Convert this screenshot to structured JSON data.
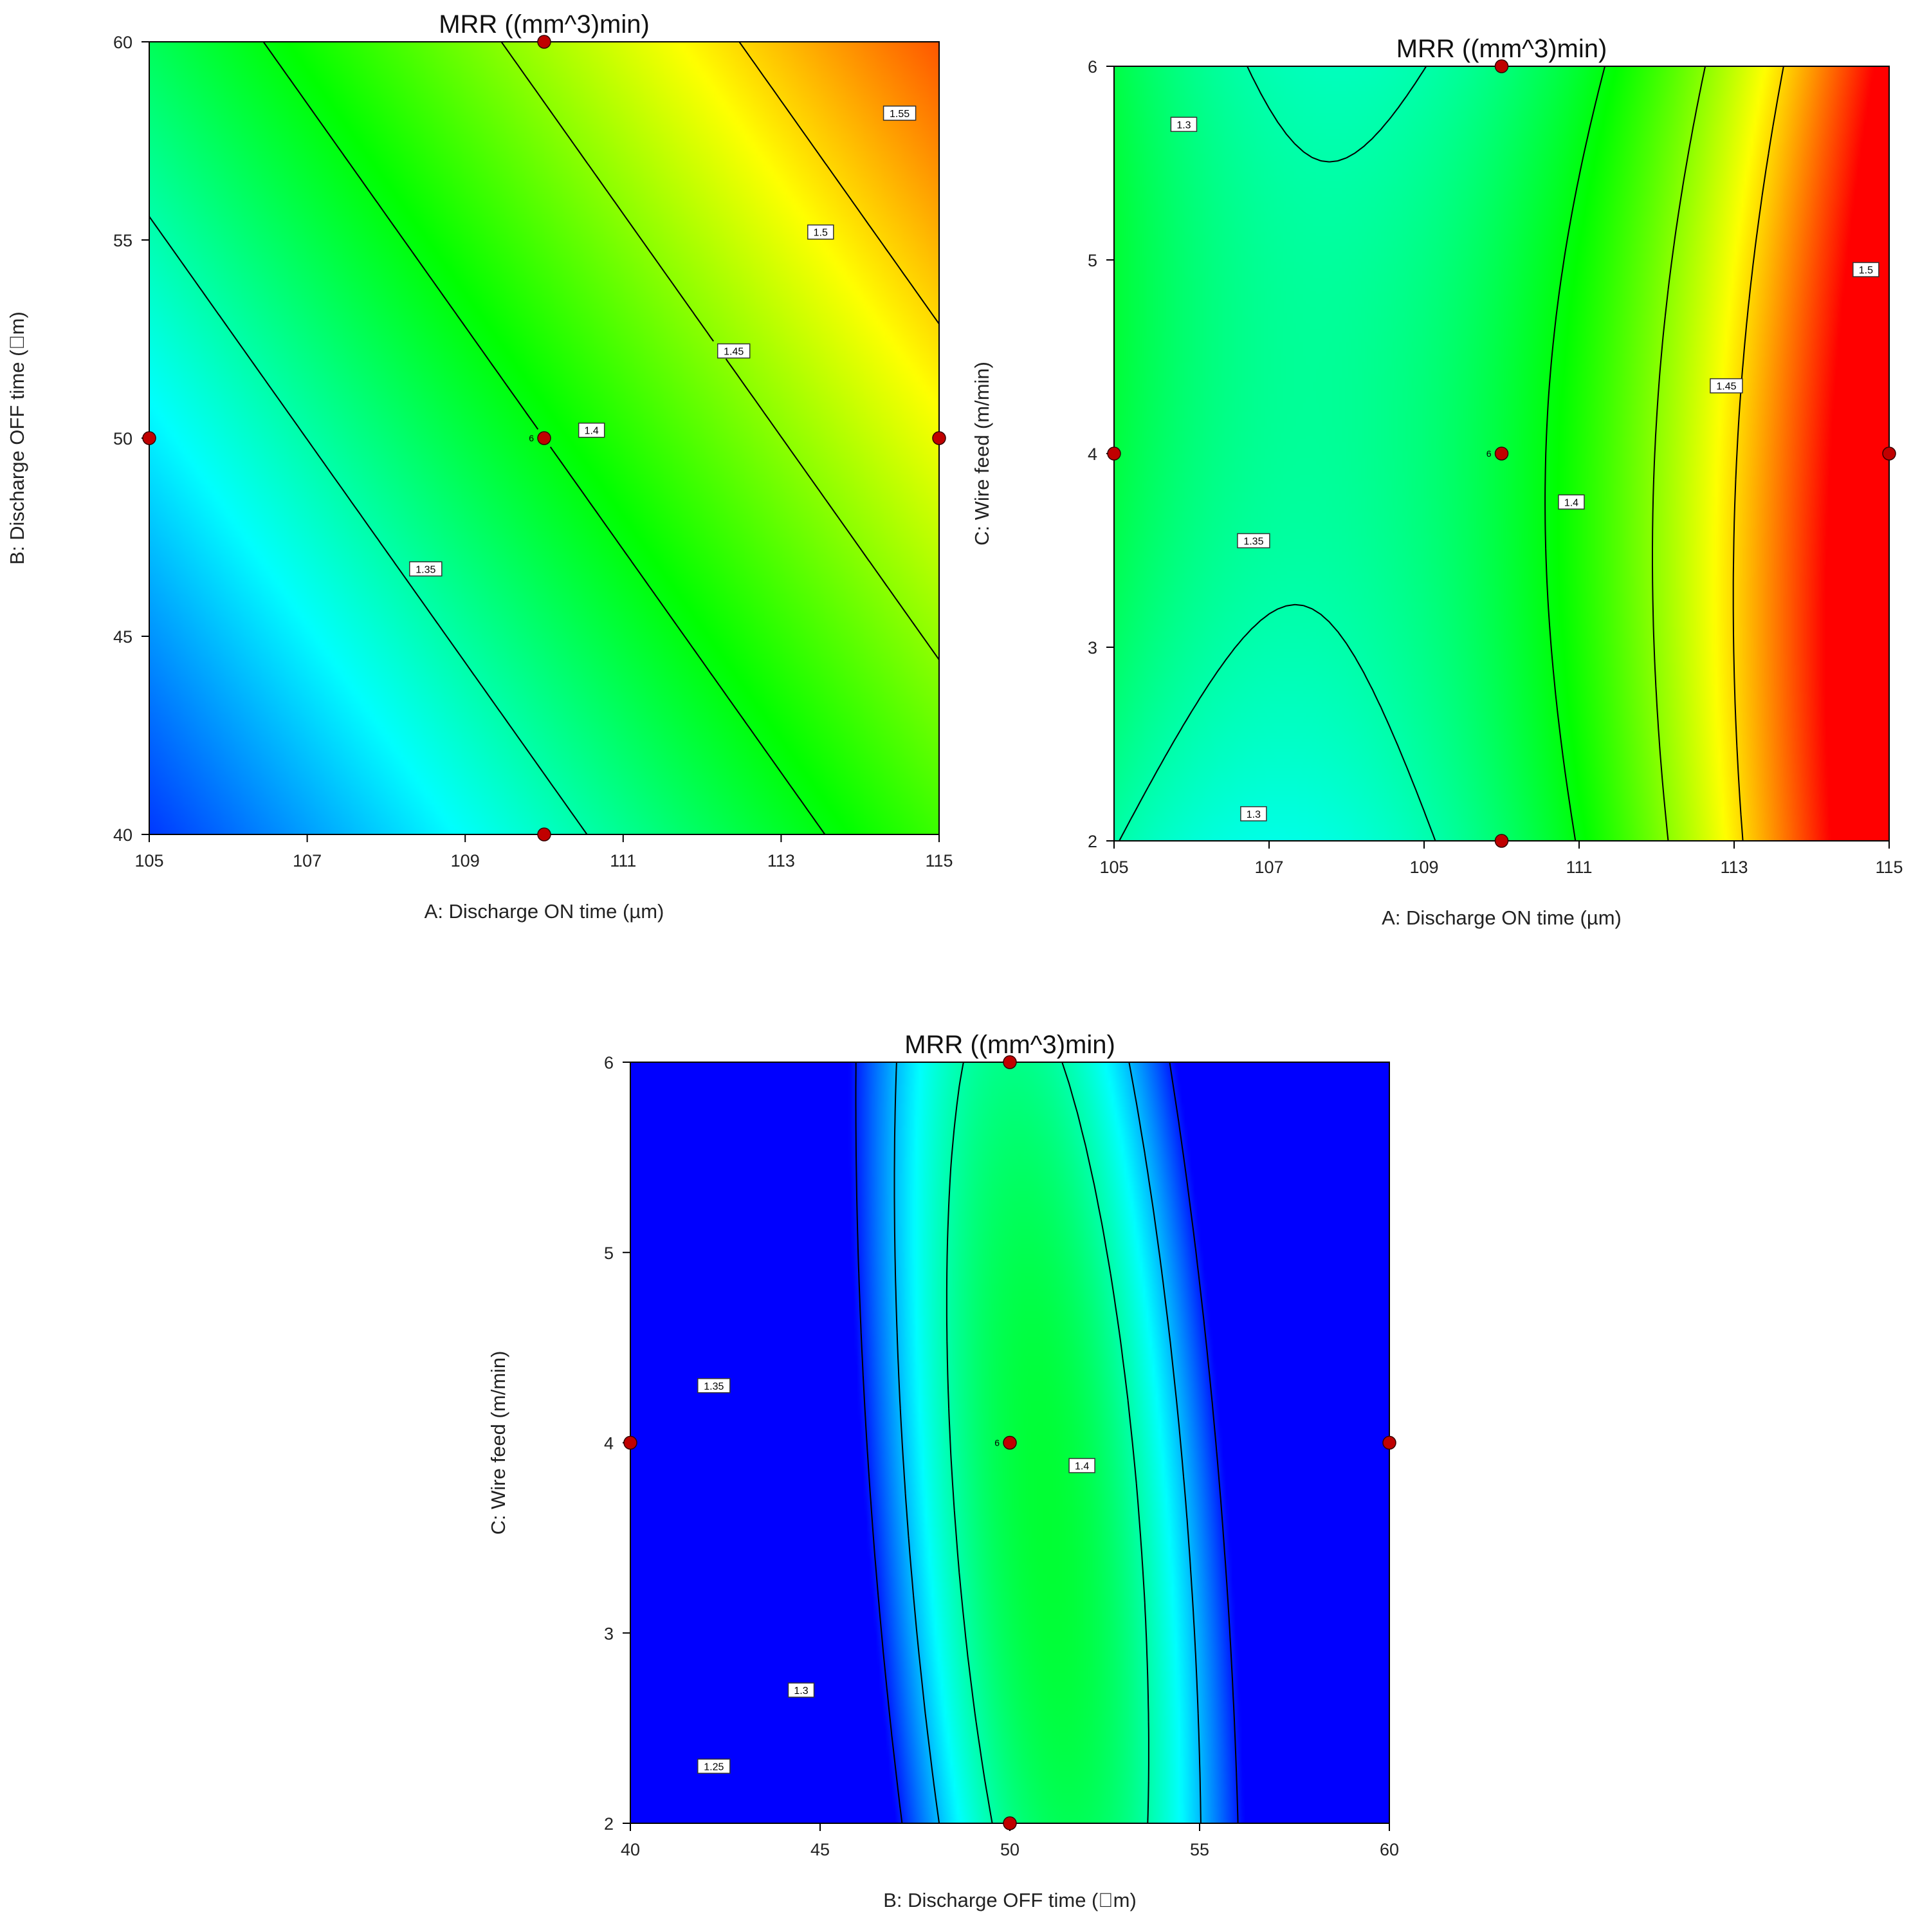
{
  "colormap": [
    "#0000ff",
    "#00ffff",
    "#00ff00",
    "#ffff00",
    "#ff0000"
  ],
  "point_color": "#c00000",
  "chart_data": [
    {
      "type": "heatmap",
      "subtype": "contour",
      "title": "MRR ((mm^3)min)",
      "xlabel": "A: Discharge ON time (µm)",
      "ylabel": "B: Discharge OFF time  (\u0000m)",
      "xlim": [
        105,
        115
      ],
      "ylim": [
        40,
        60
      ],
      "xticks": [
        "105",
        "107",
        "109",
        "111",
        "113",
        "115"
      ],
      "yticks": [
        "40",
        "45",
        "50",
        "55",
        "60"
      ],
      "zlim": [
        1.24,
        1.57
      ],
      "grid": false,
      "surface": {
        "base": 1.4,
        "a": 0.0166,
        "b": 0.0059,
        "a_center": 110,
        "b_center": 50
      },
      "contours": [
        {
          "level": 1.35,
          "label": "1.35",
          "label_at": [
            108.5,
            46.7
          ]
        },
        {
          "level": 1.4,
          "label": "1.4",
          "label_at": [
            110.6,
            50.2
          ]
        },
        {
          "level": 1.45,
          "label": "1.45",
          "label_at": [
            112.4,
            52.2
          ]
        },
        {
          "level": 1.5,
          "label": "1.5",
          "label_at": [
            113.5,
            55.2
          ]
        },
        {
          "level": 1.55,
          "label": "1.55",
          "label_at": [
            114.5,
            58.2
          ]
        }
      ],
      "design_points": [
        {
          "x": 105,
          "y": 50
        },
        {
          "x": 115,
          "y": 50
        },
        {
          "x": 110,
          "y": 40
        },
        {
          "x": 110,
          "y": 60
        },
        {
          "x": 110,
          "y": 50,
          "label": "6"
        }
      ]
    },
    {
      "type": "heatmap",
      "subtype": "contour",
      "title": "MRR ((mm^3)min)",
      "xlabel": "A: Discharge ON time (µm)",
      "ylabel": "C: Wire feed (m/min)",
      "xlim": [
        105,
        115
      ],
      "ylim": [
        2,
        6
      ],
      "xticks": [
        "105",
        "107",
        "109",
        "111",
        "113",
        "115"
      ],
      "yticks": [
        "2",
        "3",
        "4",
        "5",
        "6"
      ],
      "zlim": [
        1.24,
        1.57
      ],
      "grid": false,
      "surface": {
        "base": 1.385,
        "a": 0.0236,
        "a2": 0.0047,
        "c": -0.0012,
        "c2": -0.0044,
        "ac": -0.0018,
        "a_center": 110,
        "c_center": 4
      },
      "contours": [
        {
          "level": 1.3,
          "label": "1.3",
          "label_at": [
            105.9,
            5.7
          ]
        },
        {
          "level": 1.3,
          "label": "1.3",
          "label_at": [
            106.8,
            2.14
          ]
        },
        {
          "level": 1.35,
          "label": "1.35",
          "label_at": [
            106.8,
            3.55
          ]
        },
        {
          "level": 1.4,
          "label": "1.4",
          "label_at": [
            110.9,
            3.75
          ]
        },
        {
          "level": 1.45,
          "label": "1.45",
          "label_at": [
            112.9,
            4.35
          ]
        },
        {
          "level": 1.5,
          "label": "1.5",
          "label_at": [
            114.7,
            4.95
          ]
        }
      ],
      "design_points": [
        {
          "x": 105,
          "y": 4
        },
        {
          "x": 115,
          "y": 4
        },
        {
          "x": 110,
          "y": 2
        },
        {
          "x": 110,
          "y": 6
        },
        {
          "x": 110,
          "y": 4,
          "label": "6"
        }
      ]
    },
    {
      "type": "heatmap",
      "subtype": "contour",
      "title": "MRR ((mm^3)min)",
      "xlabel": "B: Discharge OFF time  (\u0000m)",
      "ylabel": "C: Wire feed (m/min)",
      "xlim": [
        40,
        60
      ],
      "ylim": [
        2,
        6
      ],
      "xticks": [
        "40",
        "45",
        "50",
        "55",
        "60"
      ],
      "yticks": [
        "2",
        "3",
        "4",
        "5",
        "6"
      ],
      "zlim": [
        1.24,
        1.57
      ],
      "grid": false,
      "surface": {
        "base": 1.383,
        "b": 0.0108,
        "b2": -0.0065,
        "c": 0.0,
        "c2": -0.0055,
        "bc": -0.0049,
        "b_center": 50,
        "c_center": 4
      },
      "contours": [
        {
          "level": 1.25,
          "label": "1.25",
          "label_at": [
            42.2,
            2.3
          ]
        },
        {
          "level": 1.3,
          "label": "1.3",
          "label_at": [
            44.5,
            2.7
          ]
        },
        {
          "level": 1.35,
          "label": "1.35",
          "label_at": [
            42.2,
            4.3
          ]
        },
        {
          "level": 1.4,
          "label": "1.4",
          "label_at": [
            51.9,
            3.88
          ]
        }
      ],
      "design_points": [
        {
          "x": 40,
          "y": 4
        },
        {
          "x": 60,
          "y": 4
        },
        {
          "x": 50,
          "y": 2
        },
        {
          "x": 50,
          "y": 6
        },
        {
          "x": 50,
          "y": 4,
          "label": "6"
        }
      ]
    }
  ]
}
